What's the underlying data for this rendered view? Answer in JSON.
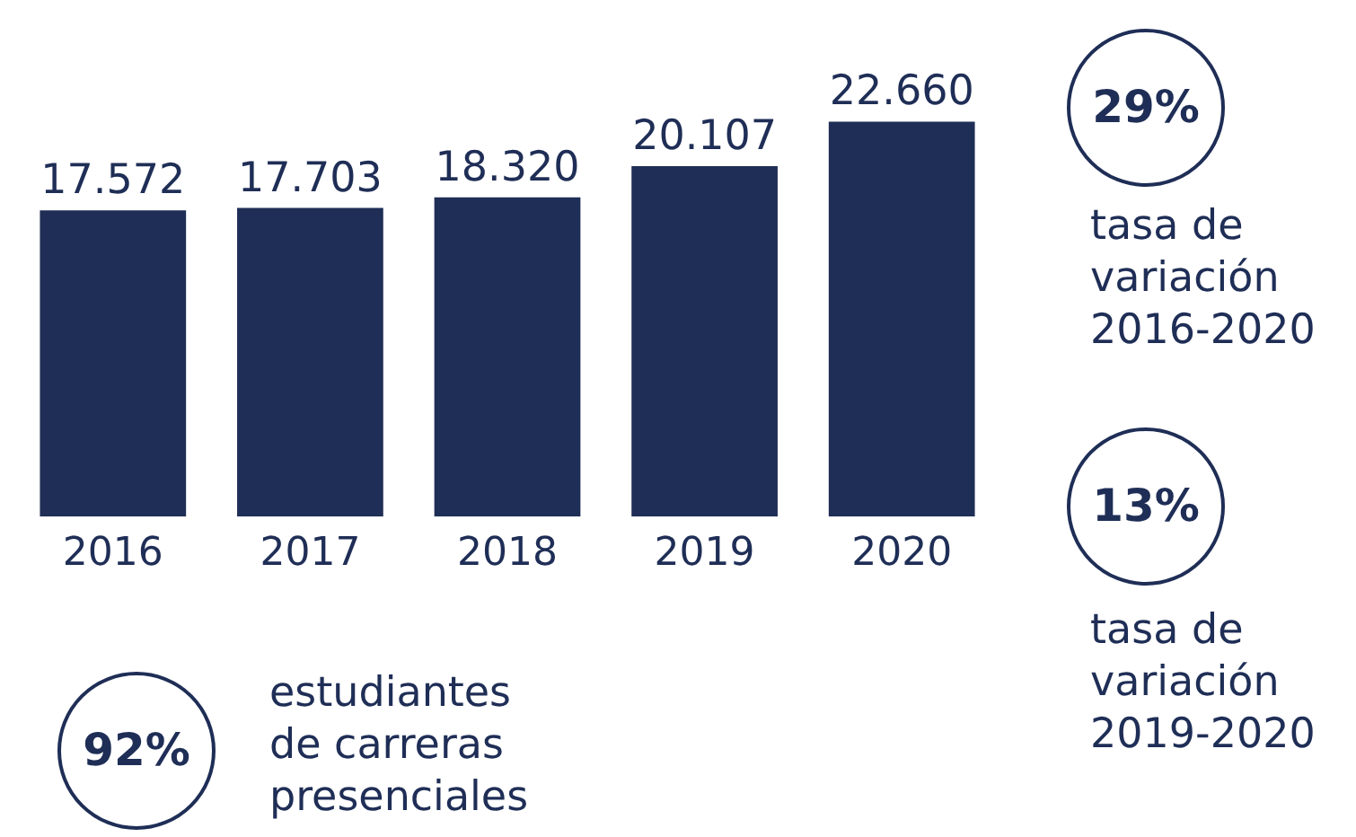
{
  "chart_data": {
    "type": "bar",
    "categories": [
      "2016",
      "2017",
      "2018",
      "2019",
      "2020"
    ],
    "values": [
      17572,
      17703,
      18320,
      20107,
      22660
    ],
    "color": "#1f2e56",
    "value_labels": [
      "17.572",
      "17.703",
      "18.320",
      "20.107",
      "22.660"
    ],
    "grid": false,
    "legend": false,
    "tick_labels": "x",
    "annotations": [
      "29%",
      "tasa de\nvariación\n2016-2020",
      "13%",
      "tasa de\nvariación\n2019-2020",
      "92%",
      "estudiantes\nde carreras\npresenciales"
    ]
  }
}
